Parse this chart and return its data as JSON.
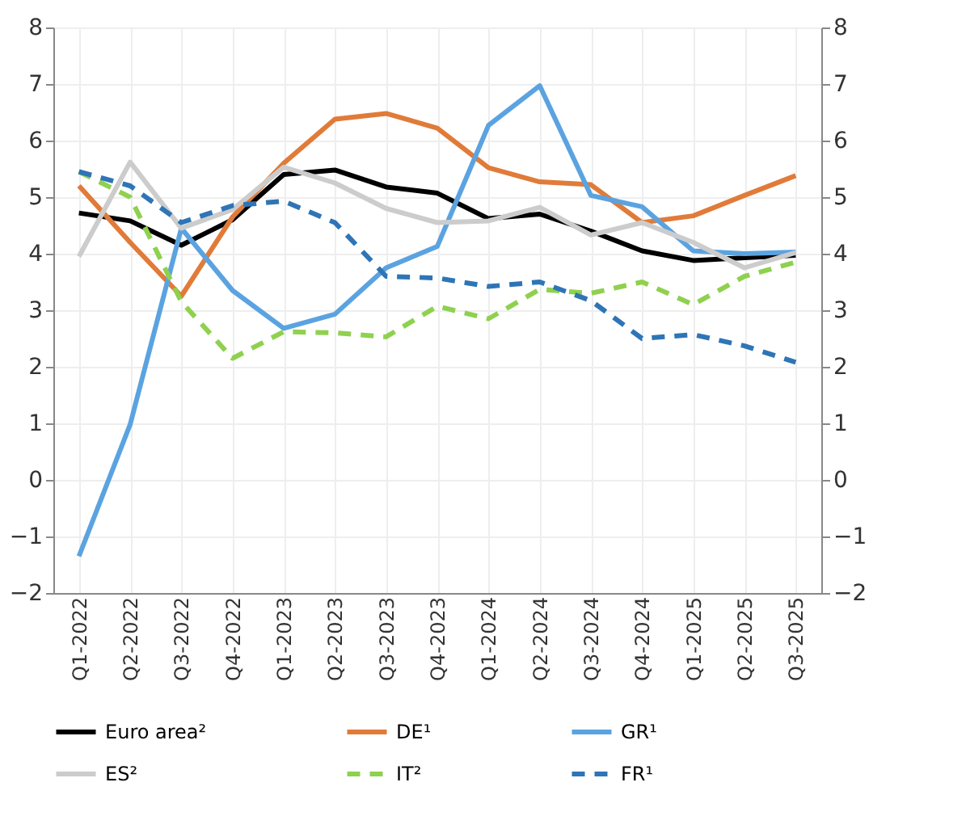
{
  "chart_data": {
    "type": "line",
    "categories": [
      "Q1-2022",
      "Q2-2022",
      "Q3-2022",
      "Q4-2022",
      "Q1-2023",
      "Q2-2023",
      "Q3-2023",
      "Q4-2023",
      "Q1-2024",
      "Q2-2024",
      "Q3-2024",
      "Q4-2024",
      "Q1-2025",
      "Q2-2025",
      "Q3-2025"
    ],
    "series": [
      {
        "name": "Euro area²",
        "color": "#000000",
        "line_style": "solid",
        "values": [
          4.72,
          4.58,
          4.15,
          4.6,
          5.4,
          5.48,
          5.18,
          5.07,
          4.62,
          4.7,
          4.4,
          4.05,
          3.88,
          3.93,
          3.97
        ]
      },
      {
        "name": "DE¹",
        "color": "#e07b39",
        "line_style": "solid",
        "values": [
          5.2,
          4.2,
          3.25,
          4.65,
          5.6,
          6.38,
          6.48,
          6.22,
          5.52,
          5.27,
          5.22,
          4.55,
          4.67,
          5.03,
          5.38
        ]
      },
      {
        "name": "GR¹",
        "color": "#5ba3e0",
        "line_style": "solid",
        "values": [
          -1.35,
          0.98,
          4.45,
          3.35,
          2.68,
          2.93,
          3.75,
          4.13,
          6.27,
          6.97,
          5.03,
          4.83,
          4.05,
          4.0,
          4.03
        ]
      },
      {
        "name": "ES²",
        "color": "#cccccc",
        "line_style": "solid",
        "values": [
          3.95,
          5.62,
          4.45,
          4.78,
          5.53,
          5.25,
          4.8,
          4.55,
          4.58,
          4.82,
          4.33,
          4.55,
          4.2,
          3.75,
          4.02
        ]
      },
      {
        "name": "IT²",
        "color": "#8fd14f",
        "line_style": "dashed",
        "values": [
          5.45,
          5.0,
          3.15,
          2.15,
          2.62,
          2.6,
          2.53,
          3.07,
          2.85,
          3.37,
          3.3,
          3.5,
          3.1,
          3.6,
          3.85
        ]
      },
      {
        "name": "FR¹",
        "color": "#2e75b6",
        "line_style": "dashed",
        "values": [
          5.45,
          5.2,
          4.55,
          4.85,
          4.93,
          4.55,
          3.6,
          3.57,
          3.42,
          3.5,
          3.17,
          2.5,
          2.57,
          2.37,
          2.08
        ]
      }
    ],
    "ylim": [
      -2,
      8
    ],
    "yticks": [
      -2,
      -1,
      0,
      1,
      2,
      3,
      4,
      5,
      6,
      7,
      8
    ],
    "y2lim": [
      -2,
      8
    ],
    "y2ticks": [
      -2,
      -1,
      0,
      1,
      2,
      3,
      4,
      5,
      6,
      7,
      8
    ],
    "grid": true,
    "legend": "bottom"
  }
}
